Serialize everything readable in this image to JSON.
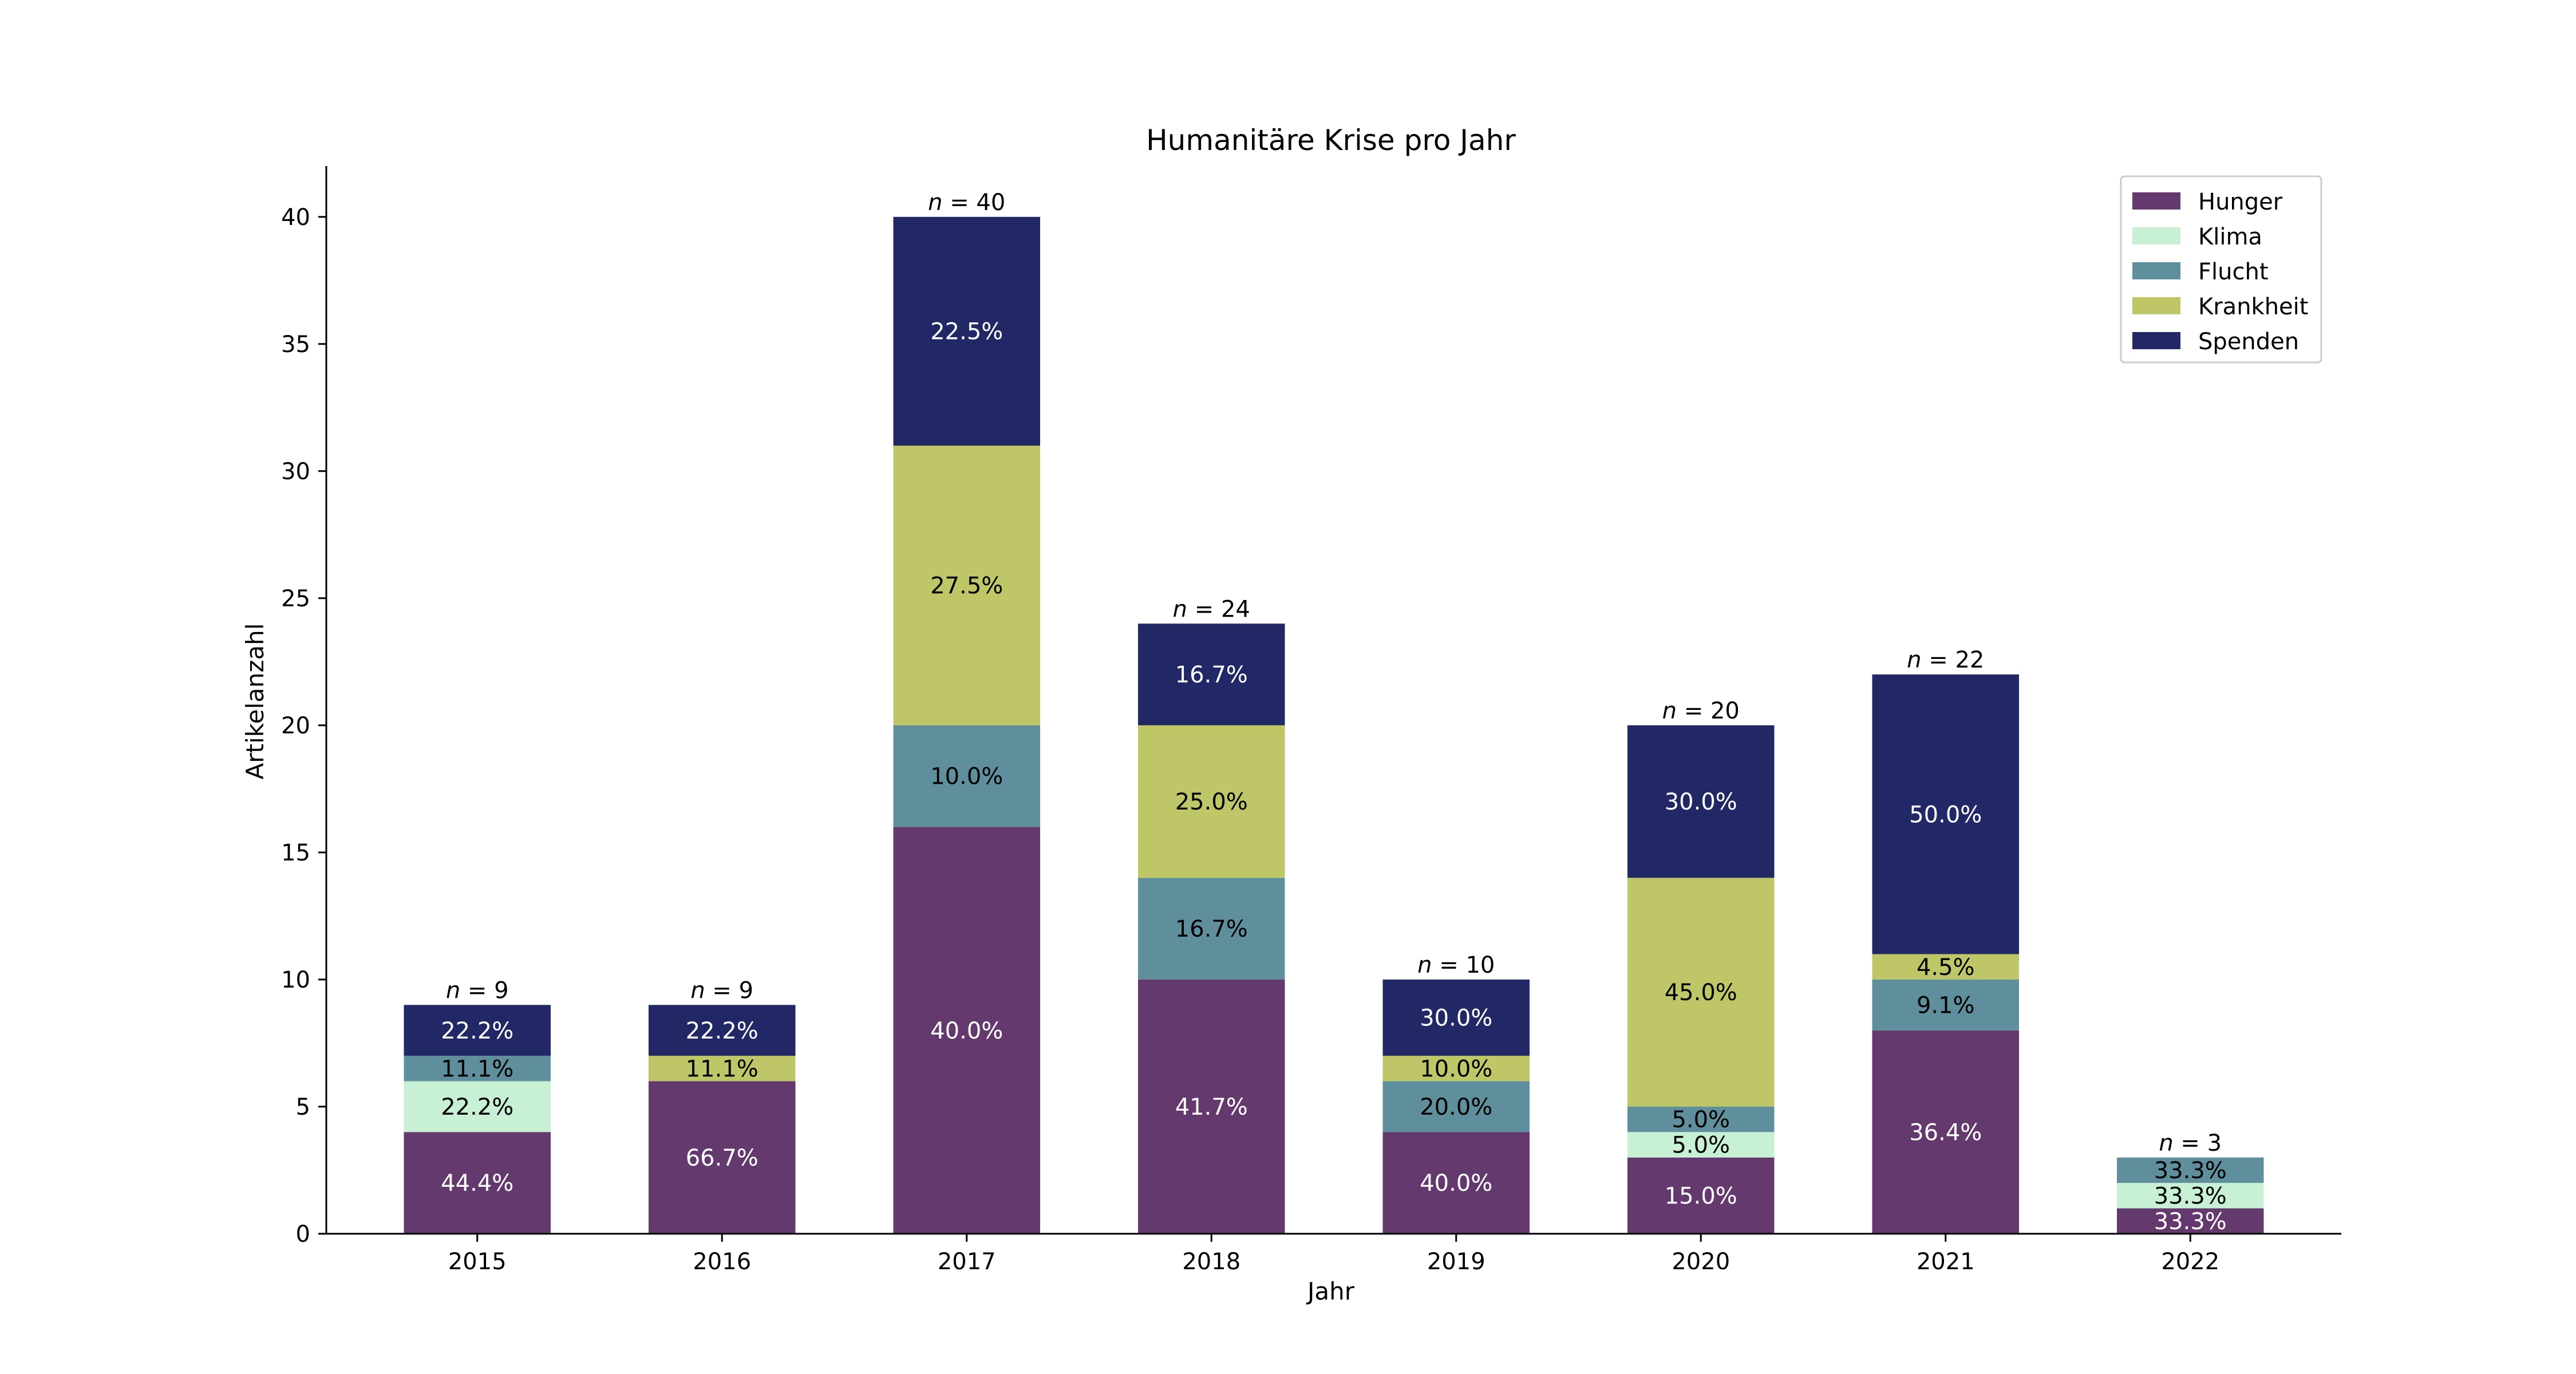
{
  "chart_data": {
    "type": "bar",
    "stacked": true,
    "title": "Humanitäre Krise pro Jahr",
    "xlabel": "Jahr",
    "ylabel": "Artikelanzahl",
    "ylim": [
      0,
      42
    ],
    "yticks": [
      0,
      5,
      10,
      15,
      20,
      25,
      30,
      35,
      40
    ],
    "grid": false,
    "legend_position": "top-right",
    "categories": [
      "2015",
      "2016",
      "2017",
      "2018",
      "2019",
      "2020",
      "2021",
      "2022"
    ],
    "totals": [
      9,
      9,
      40,
      24,
      10,
      20,
      22,
      3
    ],
    "total_prefix": "n",
    "total_separator": " = ",
    "series": [
      {
        "name": "Hunger",
        "color": "#643A6E",
        "label_color": "#ffffff",
        "values": [
          4,
          6,
          16,
          10,
          4,
          3,
          8,
          1
        ],
        "labels": [
          "44.4%",
          "66.7%",
          "40.0%",
          "41.7%",
          "40.0%",
          "15.0%",
          "36.4%",
          "33.3%"
        ]
      },
      {
        "name": "Klima",
        "color": "#C8F0D4",
        "label_color": "#000000",
        "values": [
          2,
          0,
          0,
          0,
          0,
          1,
          0,
          1
        ],
        "labels": [
          "22.2%",
          "",
          "",
          "",
          "",
          "5.0%",
          "",
          "33.3%"
        ]
      },
      {
        "name": "Flucht",
        "color": "#5F8F9C",
        "label_color": "#000000",
        "values": [
          1,
          0,
          4,
          4,
          2,
          1,
          2,
          1
        ],
        "labels": [
          "11.1%",
          "",
          "10.0%",
          "16.7%",
          "20.0%",
          "5.0%",
          "9.1%",
          "33.3%"
        ]
      },
      {
        "name": "Krankheit",
        "color": "#BEC667",
        "label_color": "#000000",
        "values": [
          0,
          1,
          11,
          6,
          1,
          9,
          1,
          0
        ],
        "labels": [
          "",
          "11.1%",
          "27.5%",
          "25.0%",
          "10.0%",
          "45.0%",
          "4.5%",
          ""
        ]
      },
      {
        "name": "Spenden",
        "color": "#222766",
        "label_color": "#ffffff",
        "values": [
          2,
          2,
          9,
          4,
          3,
          6,
          11,
          0
        ],
        "labels": [
          "22.2%",
          "22.2%",
          "22.5%",
          "16.7%",
          "30.0%",
          "30.0%",
          "50.0%",
          ""
        ]
      }
    ]
  }
}
